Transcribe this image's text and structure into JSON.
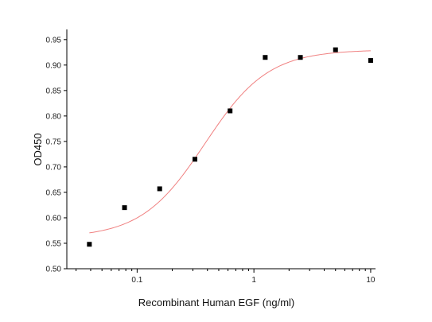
{
  "chart_data": {
    "type": "scatter",
    "title": "",
    "xlabel": "Recombinant Human EGF (ng/ml)",
    "ylabel": "OD450",
    "xscale": "log",
    "xlim": [
      0.025,
      11
    ],
    "ylim": [
      0.5,
      0.97
    ],
    "grid": false,
    "legend": "none",
    "x_ticks": [
      {
        "value": 0.1,
        "label": "0.1"
      },
      {
        "value": 1,
        "label": "1"
      },
      {
        "value": 10,
        "label": "10"
      }
    ],
    "y_ticks": [
      {
        "value": 0.5,
        "label": "0.50"
      },
      {
        "value": 0.55,
        "label": "0.55"
      },
      {
        "value": 0.6,
        "label": "0.60"
      },
      {
        "value": 0.65,
        "label": "0.65"
      },
      {
        "value": 0.7,
        "label": "0.70"
      },
      {
        "value": 0.75,
        "label": "0.75"
      },
      {
        "value": 0.8,
        "label": "0.80"
      },
      {
        "value": 0.85,
        "label": "0.85"
      },
      {
        "value": 0.9,
        "label": "0.90"
      },
      {
        "value": 0.95,
        "label": "0.95"
      }
    ],
    "series": [
      {
        "marker": "square",
        "color": "#000000",
        "points": [
          {
            "x": 0.039,
            "y": 0.548
          },
          {
            "x": 0.078,
            "y": 0.62
          },
          {
            "x": 0.156,
            "y": 0.657
          },
          {
            "x": 0.3125,
            "y": 0.715
          },
          {
            "x": 0.625,
            "y": 0.81
          },
          {
            "x": 1.25,
            "y": 0.915
          },
          {
            "x": 2.5,
            "y": 0.915
          },
          {
            "x": 5,
            "y": 0.93
          },
          {
            "x": 10,
            "y": 0.909
          }
        ]
      }
    ],
    "fit": {
      "model": "four-parameter logistic",
      "color": "#f08080",
      "bottom": 0.561,
      "top": 0.93,
      "ec50": 0.38,
      "hill": 1.6,
      "x_range": [
        0.039,
        10
      ]
    }
  }
}
